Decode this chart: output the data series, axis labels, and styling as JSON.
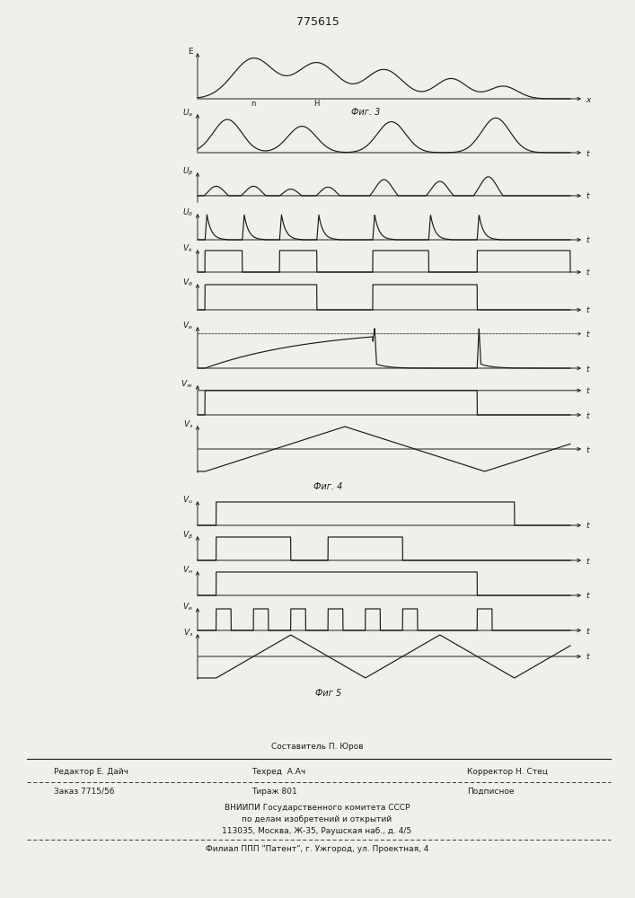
{
  "title_number": "775615",
  "fig3_label": "Фиг. 3",
  "fig4_label": "Фиг. 4",
  "fig5_label": "Фиг 5",
  "footer_line1": "Составитель П. Юров",
  "footer_line2_left": "Редактор Е. Дайч",
  "footer_line2_mid": "Техред  А.Ач",
  "footer_line2_right": "Корректор Н. Стец",
  "footer_line3_left": "Заказ 7715/56",
  "footer_line3_mid": "Тираж 801",
  "footer_line3_right": "Подписное",
  "footer_line4": "ВНИИПИ Государственного комитета СССР",
  "footer_line5": "по делам изобретений и открытий",
  "footer_line6": "113035, Москва, Ж-35, Раушская наб., д. 4/5",
  "footer_line7": "Филиал ППП \"Патент\", г. Ужгород, ул. Проектная, 4",
  "bg_color": "#f0f0eb",
  "line_color": "#1a1a1a"
}
